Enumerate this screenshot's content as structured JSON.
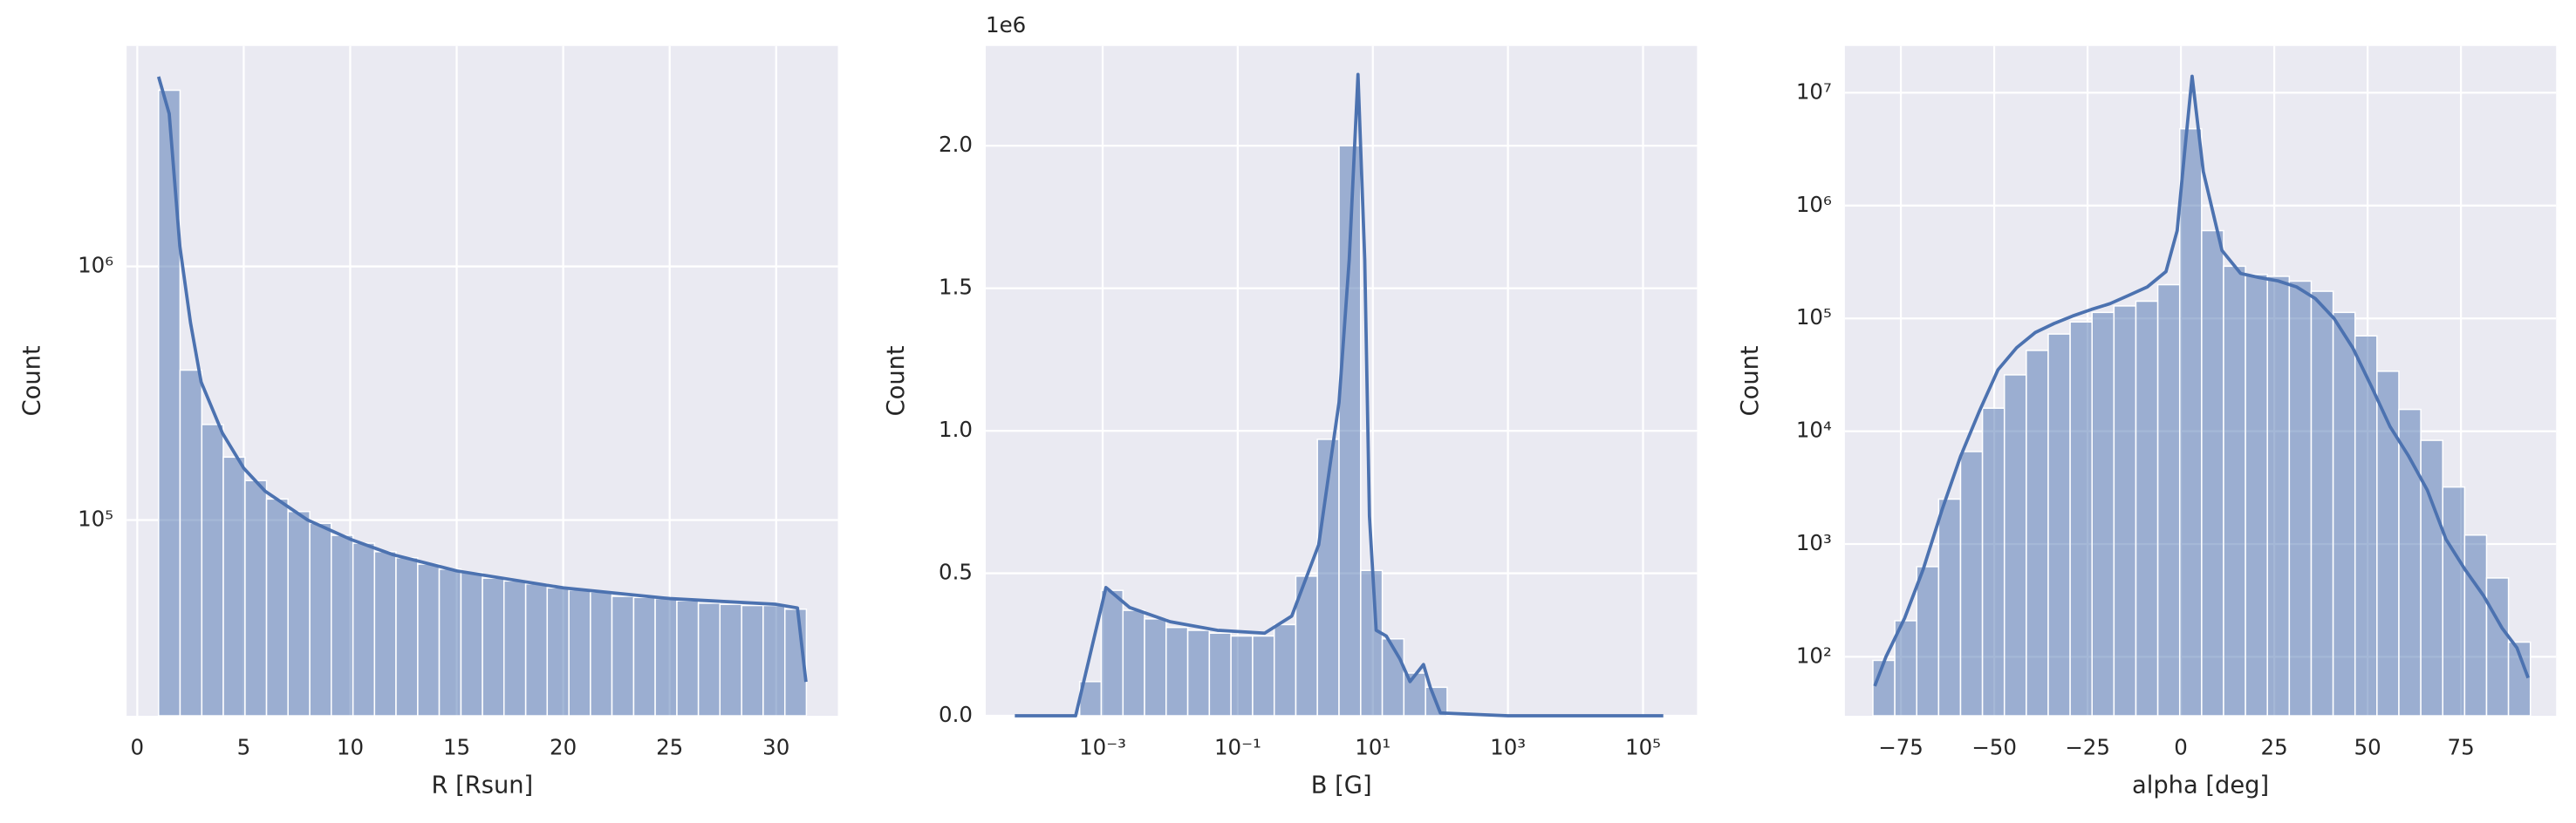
{
  "chart_data": [
    {
      "type": "histogram",
      "xlabel": "R [Rsun]",
      "ylabel": "Count",
      "color": "#4c72b0",
      "yscale": "log",
      "grid": true,
      "bins": [
        1.0,
        2.01,
        3.03,
        4.04,
        5.06,
        6.07,
        7.08,
        8.1,
        9.11,
        10.13,
        11.14,
        12.15,
        13.17,
        14.18,
        15.2,
        16.21,
        17.22,
        18.24,
        19.25,
        20.27,
        21.28,
        22.29,
        23.31,
        24.32,
        25.34,
        26.35,
        27.36,
        28.38,
        29.39,
        30.41,
        31.42
      ],
      "values": [
        4950000,
        390000,
        238000,
        177000,
        143000,
        121000,
        108000,
        97000,
        87000,
        81000,
        75000,
        71000,
        67000,
        64000,
        62000,
        59000,
        57500,
        56000,
        54000,
        53000,
        52000,
        50000,
        49500,
        49000,
        48000,
        47000,
        46500,
        46000,
        46000,
        44500
      ],
      "line": {
        "x": [
          1,
          1.5,
          2,
          2.5,
          3,
          4,
          5,
          6,
          8,
          10,
          12,
          15,
          20,
          25,
          30,
          31,
          31.4
        ],
        "values": [
          5600000,
          4000000,
          1200000,
          600000,
          350000,
          220000,
          160000,
          130000,
          100000,
          84000,
          73000,
          63000,
          54000,
          49000,
          46500,
          45000,
          23000
        ]
      },
      "xlim": [
        -0.5,
        32.9
      ],
      "ylim": [
        16900,
        7400000
      ],
      "xticks": [
        0,
        5,
        10,
        15,
        20,
        25,
        30
      ],
      "yticks": [
        {
          "value": 100000,
          "label": "10⁵"
        },
        {
          "value": 1000000,
          "label": "10⁶"
        }
      ]
    },
    {
      "type": "histogram",
      "xlabel": "B [G]",
      "ylabel": "Count",
      "offset_text": "1e6",
      "color": "#4c72b0",
      "xscale": "log",
      "grid": true,
      "bins": [
        5.01e-05,
        0.000105,
        0.000219,
        0.000457,
        0.000955,
        0.002,
        0.00417,
        0.00871,
        0.0182,
        0.038,
        0.0794,
        0.166,
        0.347,
        0.724,
        1.51,
        3.16,
        6.61,
        13.8,
        28.8,
        60.3,
        126,
        263,
        550,
        1148,
        2399,
        5012,
        10471,
        21878,
        45709,
        95499,
        199526
      ],
      "values": [
        20,
        20,
        20,
        120000,
        440000,
        370000,
        340000,
        310000,
        300000,
        290000,
        280000,
        280000,
        320000,
        490000,
        970000,
        2000000,
        510000,
        270000,
        150000,
        100000,
        20,
        20,
        20,
        20,
        20,
        20,
        20,
        20,
        20,
        20
      ],
      "line": {
        "x": [
          5.01e-05,
          0.000398,
          0.000631,
          0.00112,
          0.00251,
          0.01,
          0.0501,
          0.251,
          0.631,
          1.58,
          3.16,
          4.47,
          6.03,
          7.59,
          8.91,
          11.2,
          15.8,
          25.1,
          35.5,
          44.7,
          56.2,
          70.8,
          100,
          1000,
          199526
        ],
        "values": [
          0,
          0,
          200000,
          450000,
          380000,
          330000,
          300000,
          290000,
          350000,
          600000,
          1100000,
          1600000,
          2250000,
          1600000,
          700000,
          300000,
          280000,
          200000,
          120000,
          150000,
          180000,
          100000,
          10000,
          0,
          0
        ]
      },
      "xlim": [
        1.86e-05,
        630000
      ],
      "ylim": [
        0,
        2350000
      ],
      "xticks": [
        {
          "value": 0.001,
          "label": "10⁻³"
        },
        {
          "value": 0.1,
          "label": "10⁻¹"
        },
        {
          "value": 10,
          "label": "10¹"
        },
        {
          "value": 1000,
          "label": "10³"
        },
        {
          "value": 100000,
          "label": "10⁵"
        }
      ],
      "yticks": [
        {
          "value": 0,
          "label": "0.0"
        },
        {
          "value": 500000,
          "label": "0.5"
        },
        {
          "value": 1000000,
          "label": "1.0"
        },
        {
          "value": 1500000,
          "label": "1.5"
        },
        {
          "value": 2000000,
          "label": "2.0"
        }
      ]
    },
    {
      "type": "histogram",
      "xlabel": "alpha [deg]",
      "ylabel": "Count",
      "color": "#4c72b0",
      "yscale": "log",
      "grid": true,
      "bins": [
        -82.5,
        -76.63,
        -70.76,
        -64.89,
        -59.02,
        -53.15,
        -47.28,
        -41.41,
        -35.54,
        -29.67,
        -23.8,
        -17.93,
        -12.06,
        -6.19,
        -0.32,
        5.55,
        11.42,
        17.29,
        23.16,
        29.03,
        34.9,
        40.77,
        46.64,
        52.51,
        58.38,
        64.25,
        70.12,
        75.99,
        81.86,
        87.73,
        93.6
      ],
      "values": [
        93,
        209,
        630,
        2500,
        6600,
        16000,
        31600,
        52000,
        72700,
        93000,
        113000,
        129000,
        142000,
        199000,
        4800000,
        600000,
        290000,
        245000,
        236000,
        214000,
        174000,
        113000,
        70000,
        34000,
        15600,
        8300,
        3200,
        1200,
        500,
        135
      ],
      "line": {
        "x": [
          -82,
          -79,
          -74,
          -69,
          -64,
          -59,
          -54,
          -49,
          -44,
          -39,
          -34,
          -29,
          -24,
          -19,
          -14,
          -9,
          -4,
          -1,
          1,
          3,
          6,
          11,
          16,
          21,
          26,
          31,
          36,
          41,
          46,
          51,
          56,
          61,
          66,
          71,
          76,
          81,
          86,
          90,
          93
        ],
        "values": [
          55,
          100,
          220,
          600,
          2000,
          6000,
          15000,
          35000,
          55000,
          75000,
          90000,
          105000,
          120000,
          135000,
          160000,
          190000,
          260000,
          600000,
          3000000,
          14000000,
          2000000,
          400000,
          250000,
          230000,
          215000,
          190000,
          150000,
          100000,
          55000,
          25000,
          11000,
          6000,
          3000,
          1100,
          600,
          350,
          180,
          120,
          65
        ]
      },
      "xlim": [
        -90,
        100.5
      ],
      "ylim": [
        30,
        26000000
      ],
      "xticks": [
        {
          "value": -75,
          "label": "−75"
        },
        {
          "value": -50,
          "label": "−50"
        },
        {
          "value": -25,
          "label": "−25"
        },
        0,
        25,
        50,
        75
      ],
      "yticks": [
        {
          "value": 100,
          "label": "10²"
        },
        {
          "value": 1000,
          "label": "10³"
        },
        {
          "value": 10000,
          "label": "10⁴"
        },
        {
          "value": 100000,
          "label": "10⁵"
        },
        {
          "value": 1000000,
          "label": "10⁶"
        },
        {
          "value": 10000000,
          "label": "10⁷"
        }
      ]
    }
  ]
}
